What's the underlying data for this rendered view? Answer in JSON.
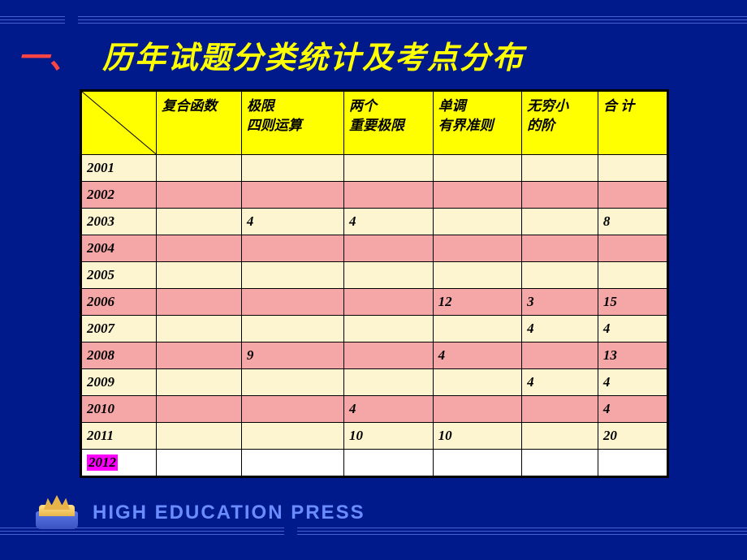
{
  "title": {
    "number": "一、",
    "text": "历年试题分类统计及考点分布"
  },
  "table": {
    "header_bg": "#ffff00",
    "row_colors": {
      "cream": "#fdf5d0",
      "pink": "#f5a6a6",
      "white": "#ffffff"
    },
    "columns": [
      "",
      "复合函数",
      "极限\n四则运算",
      "两个\n重要极限",
      "单调\n有界准则",
      "无穷小\n的阶",
      "合 计"
    ],
    "rows": [
      {
        "year": "2001",
        "shade": "cream",
        "cells": [
          "",
          "",
          "",
          "",
          "",
          ""
        ]
      },
      {
        "year": "2002",
        "shade": "pink",
        "cells": [
          "",
          "",
          "",
          "",
          "",
          ""
        ]
      },
      {
        "year": "2003",
        "shade": "cream",
        "cells": [
          "",
          "4",
          "4",
          "",
          "",
          "8"
        ]
      },
      {
        "year": "2004",
        "shade": "pink",
        "cells": [
          "",
          "",
          "",
          "",
          "",
          ""
        ]
      },
      {
        "year": "2005",
        "shade": "cream",
        "cells": [
          "",
          "",
          "",
          "",
          "",
          ""
        ]
      },
      {
        "year": "2006",
        "shade": "pink",
        "cells": [
          "",
          "",
          "",
          "12",
          "3",
          "15"
        ]
      },
      {
        "year": "2007",
        "shade": "cream",
        "cells": [
          "",
          "",
          "",
          "",
          "4",
          "4"
        ]
      },
      {
        "year": "2008",
        "shade": "pink",
        "cells": [
          "",
          "9",
          "",
          "4",
          "",
          "13"
        ]
      },
      {
        "year": "2009",
        "shade": "cream",
        "cells": [
          "",
          "",
          "",
          "",
          "4",
          "4"
        ]
      },
      {
        "year": "2010",
        "shade": "pink",
        "cells": [
          "",
          "",
          "4",
          "",
          "",
          "4"
        ]
      },
      {
        "year": "2011",
        "shade": "cream",
        "cells": [
          "",
          "",
          "10",
          "10",
          "",
          "20"
        ]
      },
      {
        "year": "2012",
        "shade": "white",
        "highlight": true,
        "cells": [
          "",
          "",
          "",
          "",
          "",
          ""
        ]
      }
    ]
  },
  "footer": {
    "brand": "HIGH EDUCATION PRESS"
  },
  "colors": {
    "background": "#001a8c",
    "title_number": "#ff4444",
    "title_text": "#ffff00",
    "deco_line": "#4a5fd0",
    "brand_text": "#6a8cff",
    "highlight_2012": "#ff00ff"
  }
}
